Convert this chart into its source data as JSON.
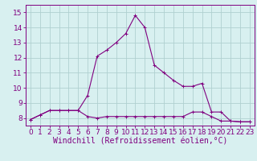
{
  "x": [
    0,
    1,
    2,
    3,
    4,
    5,
    6,
    7,
    8,
    9,
    10,
    11,
    12,
    13,
    14,
    15,
    16,
    17,
    18,
    19,
    20,
    21,
    22,
    23
  ],
  "line1": [
    7.9,
    8.2,
    8.5,
    8.5,
    8.5,
    8.5,
    8.1,
    8.0,
    8.1,
    8.1,
    8.1,
    8.1,
    8.1,
    8.1,
    8.1,
    8.1,
    8.1,
    8.4,
    8.4,
    8.1,
    7.8,
    7.8,
    7.75,
    7.75
  ],
  "line2": [
    7.9,
    8.2,
    8.5,
    8.5,
    8.5,
    8.5,
    9.5,
    12.1,
    12.5,
    13.0,
    13.6,
    14.8,
    14.0,
    11.5,
    11.0,
    10.5,
    10.1,
    10.1,
    10.3,
    8.4,
    8.4,
    7.8,
    7.75,
    7.75
  ],
  "line_color": "#800080",
  "background_color": "#d8f0f0",
  "grid_color": "#b0d0d0",
  "xlabel": "Windchill (Refroidissement éolien,°C)",
  "xlim": [
    -0.5,
    23.5
  ],
  "ylim": [
    7.5,
    15.5
  ],
  "yticks": [
    8,
    9,
    10,
    11,
    12,
    13,
    14,
    15
  ],
  "xticks": [
    0,
    1,
    2,
    3,
    4,
    5,
    6,
    7,
    8,
    9,
    10,
    11,
    12,
    13,
    14,
    15,
    16,
    17,
    18,
    19,
    20,
    21,
    22,
    23
  ],
  "tick_fontsize": 6.5,
  "xlabel_fontsize": 7.0,
  "marker_size": 2.5,
  "linewidth": 0.8
}
